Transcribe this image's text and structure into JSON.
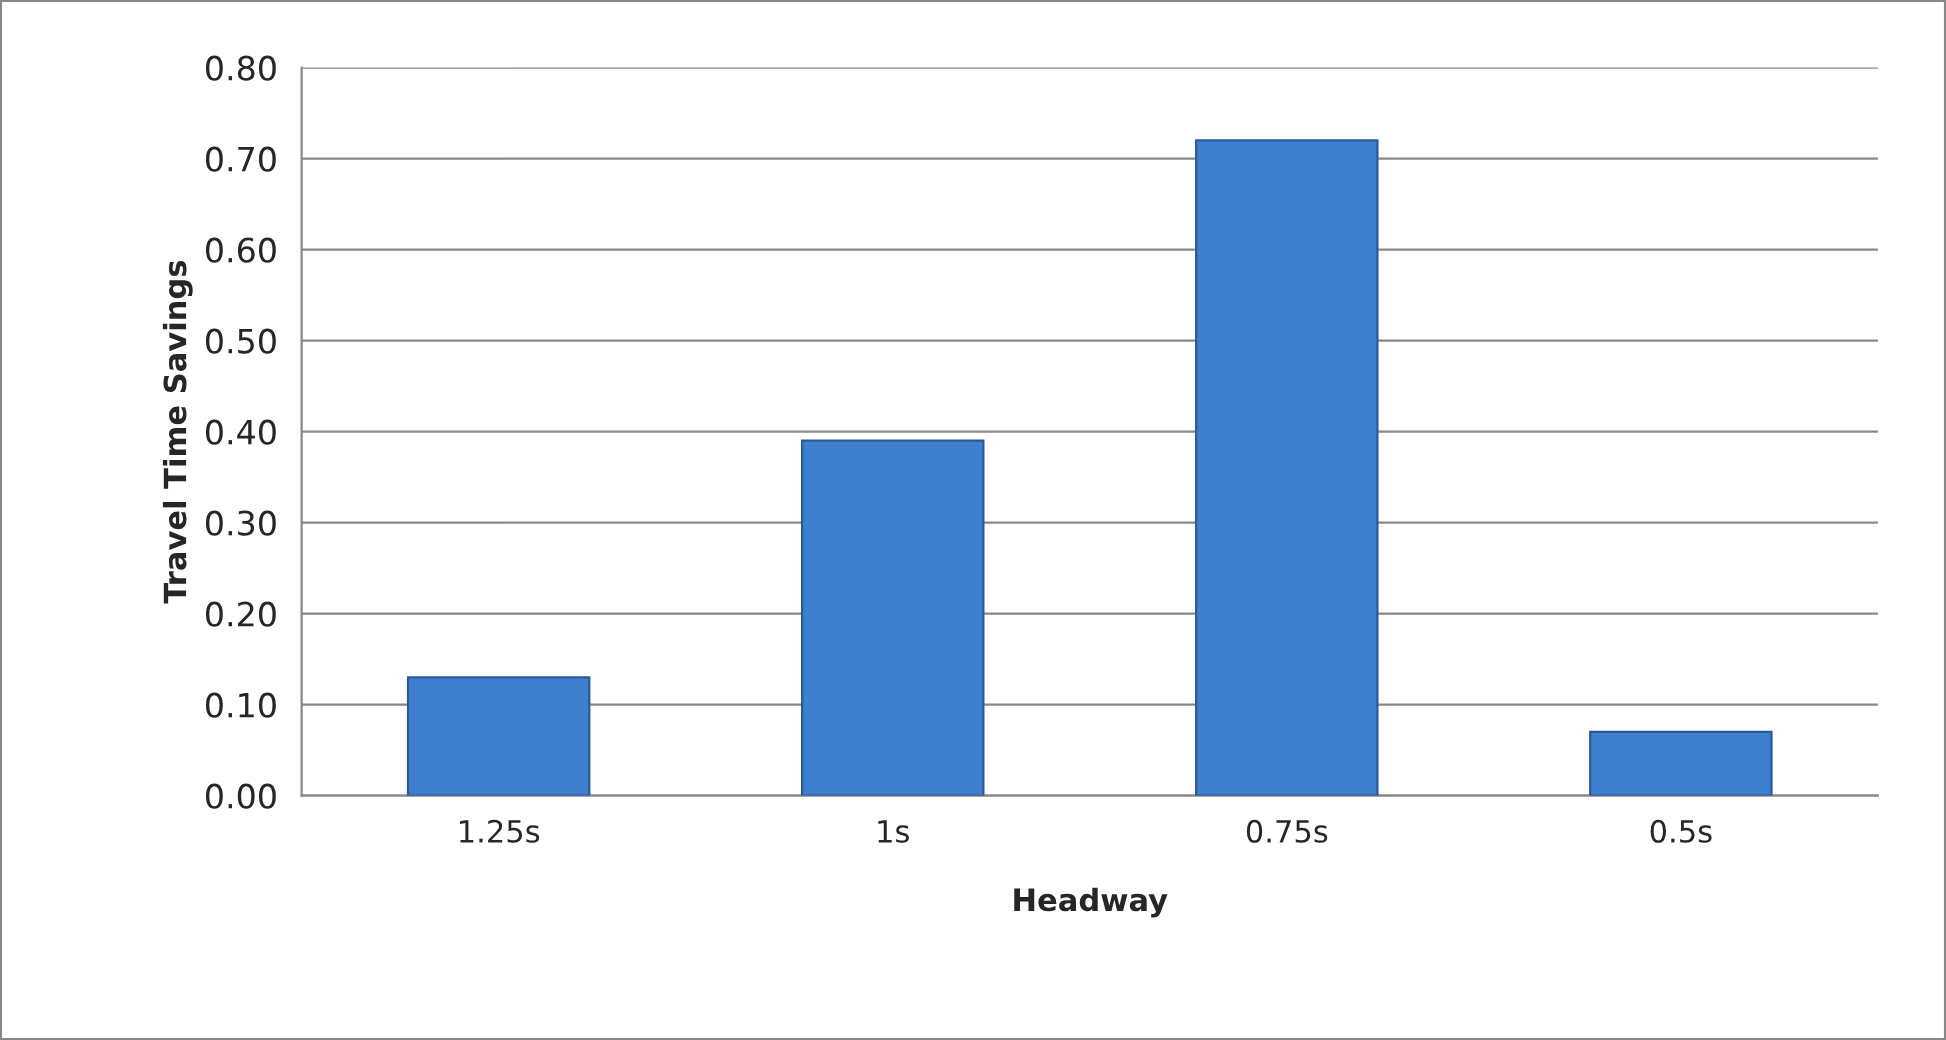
{
  "chart_data": {
    "type": "bar",
    "xlabel": "Headway",
    "ylabel": "Travel Time Savings",
    "categories": [
      "1.25s",
      "1s",
      "0.75s",
      "0.5s"
    ],
    "values": [
      0.13,
      0.39,
      0.72,
      0.07
    ],
    "color": "#3f7fd0",
    "ylim": [
      0,
      0.8
    ],
    "yticks": [
      {
        "value": 0,
        "label": "0.00"
      },
      {
        "value": 0.1,
        "label": "0.10"
      },
      {
        "value": 0.2,
        "label": "0.20"
      },
      {
        "value": 0.3,
        "label": "0.30"
      },
      {
        "value": 0.4,
        "label": "0.40"
      },
      {
        "value": 0.5,
        "label": "0.50"
      },
      {
        "value": 0.6,
        "label": "0.60"
      },
      {
        "value": 0.7,
        "label": "0.70"
      },
      {
        "value": 0.8,
        "label": "0.80"
      }
    ],
    "grid": "y"
  }
}
